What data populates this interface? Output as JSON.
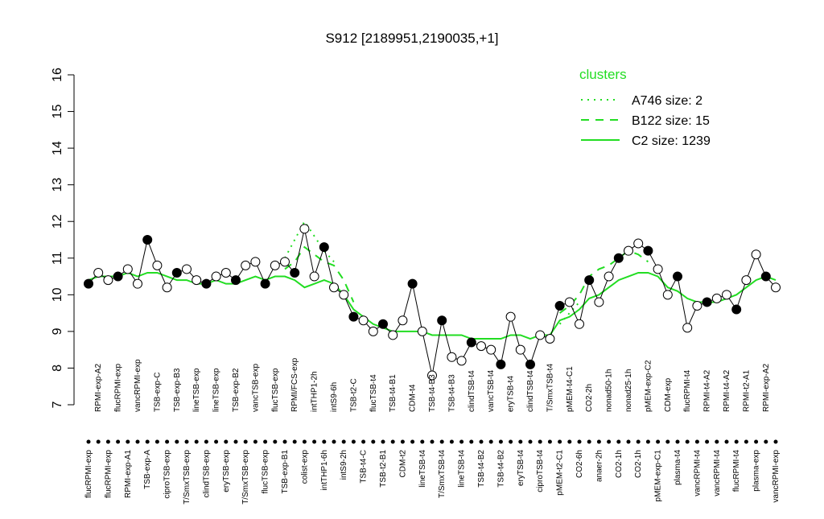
{
  "chart_data": {
    "type": "line",
    "title": "S912 [2189951,2190035,+1]",
    "ylim": [
      7,
      16
    ],
    "yticks": [
      7,
      8,
      9,
      10,
      11,
      12,
      13,
      14,
      15,
      16
    ],
    "color": "#000000",
    "legend_title": "clusters",
    "legend": "top-right",
    "categories": [
      "flucRPMI-exp",
      "RPMI-exp-A2",
      "flucRPMI-exp",
      "flucRPMI-exp",
      "RPMI-exp-A1",
      "vancRPMI-exp",
      "TSB-exp-A",
      "TSB-exp-C",
      "ciproTSB-exp",
      "TSB-exp-B3",
      "T/SmxTSB-exp",
      "lineTSB-exp",
      "clindTSB-exp",
      "lineTSB-exp",
      "eryTSB-exp",
      "TSB-exp-B2",
      "T/SmxTSB-exp",
      "vancTSB-exp",
      "flucTSB-exp",
      "flucTSB-exp",
      "TSB-exp-B1",
      "RPMI/FCS-exp",
      "colist-exp",
      "intTHP1-2h",
      "intTHP1-6h",
      "intS9-6h",
      "intS9-2h",
      "TSB-t2-C",
      "TSB-t4-C",
      "flucTSB-t4",
      "TSB-t2-B1",
      "TSB-t4-B1",
      "CDM-t2",
      "CDM-t4",
      "lineTSB-t4",
      "TSB-t4-B3",
      "T/SmxTSB-t4",
      "TSB-t4-B3",
      "lineTSB-t4",
      "clindTSB-t4",
      "TSB-t4-B2",
      "vancTSB-t4",
      "TSB-t4-B2",
      "eryTSB-t4",
      "eryTSB-t4",
      "clindTSB-t4",
      "ciproTSB-t4",
      "T/SmxTSB-t4",
      "pMEM-t2-C1",
      "pMEM-t4-C1",
      "CO2-6h",
      "CO2-2h",
      "anaer-2h",
      "nonad50-1h",
      "CO2-1h",
      "nonad25-1h",
      "CO2-1h",
      "pMEM-exp-C2",
      "pMEM-exp-C1",
      "CDM-exp",
      "plasma-t4",
      "flucRPMI-t4",
      "vancRPMI-t4",
      "RPMI-t4-A2",
      "vancRPMI-t4",
      "RPMI-t4-A2",
      "flucRPMI-t4",
      "RPMI-t2-A1",
      "plasma-exp",
      "RPMI-exp-A2",
      "vancRPMI-exp"
    ],
    "values": [
      10.3,
      10.6,
      10.4,
      10.5,
      10.7,
      10.3,
      11.5,
      10.8,
      10.2,
      10.6,
      10.7,
      10.4,
      10.3,
      10.5,
      10.6,
      10.4,
      10.8,
      10.9,
      10.3,
      10.8,
      10.9,
      10.6,
      11.8,
      10.5,
      11.3,
      10.2,
      10.0,
      9.4,
      9.3,
      9.0,
      9.2,
      8.9,
      9.3,
      10.3,
      9.0,
      7.8,
      9.3,
      8.3,
      8.2,
      8.7,
      8.6,
      8.5,
      8.1,
      9.4,
      8.5,
      8.1,
      8.9,
      8.8,
      9.7,
      9.8,
      9.2,
      10.4,
      9.8,
      10.5,
      11.0,
      11.2,
      11.4,
      11.2,
      10.7,
      10.0,
      10.5,
      9.1,
      9.7,
      9.8,
      9.9,
      10.0,
      9.6,
      10.4,
      11.1,
      10.5,
      10.2
    ],
    "series": [
      {
        "name": "A746 size: 2",
        "color": "#22dd22",
        "dash": "dotted",
        "values": [
          null,
          null,
          null,
          null,
          null,
          null,
          null,
          null,
          null,
          null,
          null,
          null,
          null,
          null,
          null,
          null,
          null,
          null,
          null,
          null,
          11.0,
          11.5,
          12.0,
          11.6,
          11.2,
          10.9,
          null,
          null,
          null,
          null,
          null,
          null,
          null,
          null,
          null,
          null,
          null,
          null,
          null,
          null,
          null,
          null,
          null,
          null,
          null,
          null,
          null,
          null,
          9.2,
          9.5,
          9.8,
          null,
          null,
          null,
          null,
          null,
          null,
          null,
          null,
          null,
          null,
          null,
          null,
          null,
          null,
          null,
          null,
          null,
          null,
          null,
          null
        ]
      },
      {
        "name": "B122 size: 15",
        "color": "#22dd22",
        "dash": "dashed",
        "values": [
          null,
          null,
          null,
          null,
          null,
          null,
          null,
          null,
          null,
          null,
          null,
          null,
          null,
          null,
          null,
          null,
          null,
          null,
          null,
          null,
          10.7,
          10.9,
          11.3,
          11.1,
          10.9,
          10.8,
          10.4,
          9.8,
          null,
          null,
          null,
          null,
          null,
          null,
          null,
          null,
          null,
          null,
          null,
          null,
          null,
          null,
          null,
          null,
          null,
          null,
          null,
          null,
          9.5,
          9.7,
          10.0,
          10.5,
          10.7,
          10.8,
          11.0,
          11.2,
          11.1,
          10.9,
          null,
          null,
          null,
          null,
          null,
          null,
          null,
          null,
          null,
          null,
          null,
          null,
          null
        ]
      },
      {
        "name": "C2 size: 1239",
        "color": "#22dd22",
        "dash": "solid",
        "values": [
          10.4,
          10.5,
          10.5,
          10.5,
          10.6,
          10.5,
          10.6,
          10.6,
          10.5,
          10.4,
          10.4,
          10.3,
          10.3,
          10.4,
          10.3,
          10.3,
          10.4,
          10.5,
          10.4,
          10.5,
          10.5,
          10.4,
          10.2,
          10.3,
          10.4,
          10.3,
          10.0,
          9.6,
          9.4,
          9.2,
          9.1,
          9.0,
          9.0,
          9.0,
          9.0,
          8.9,
          8.9,
          8.9,
          8.9,
          8.8,
          8.8,
          8.8,
          8.8,
          8.9,
          8.9,
          8.8,
          8.9,
          8.9,
          9.3,
          9.4,
          9.6,
          9.9,
          10.0,
          10.2,
          10.4,
          10.5,
          10.6,
          10.6,
          10.5,
          10.2,
          10.1,
          9.9,
          9.8,
          9.8,
          9.8,
          9.9,
          10.0,
          10.2,
          10.4,
          10.5,
          10.4
        ]
      }
    ]
  }
}
